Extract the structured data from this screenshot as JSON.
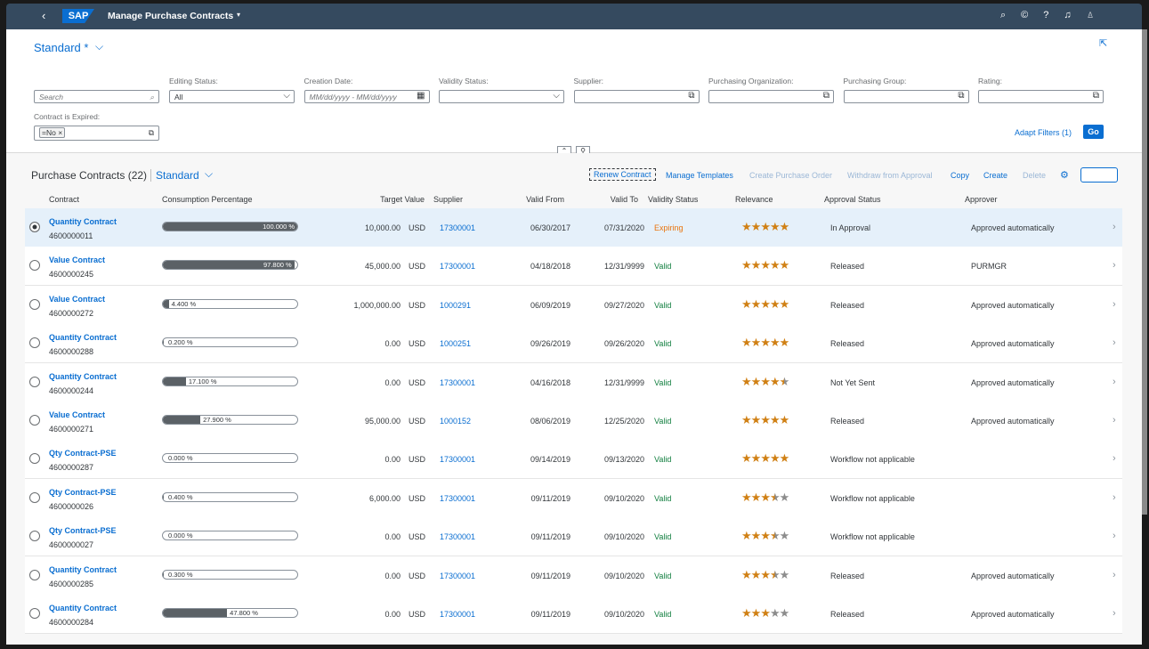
{
  "shell": {
    "logo": "SAP",
    "title": "Manage Purchase Contracts"
  },
  "variant": "Standard *",
  "filters": {
    "search": "Search",
    "fields": [
      {
        "label": "Editing Status:",
        "value": "All"
      },
      {
        "label": "Creation Date:",
        "placeholder": "MM/dd/yyyy - MM/dd/yyyy"
      },
      {
        "label": "Validity Status:"
      },
      {
        "label": "Supplier:"
      },
      {
        "label": "Purchasing Organization:"
      },
      {
        "label": "Purchasing Group:"
      },
      {
        "label": "Rating:"
      }
    ],
    "expired": {
      "label": "Contract is Expired:",
      "token": "=No"
    },
    "adapt": "Adapt Filters (1)",
    "go": "Go"
  },
  "table": {
    "title": "Purchase Contracts (22)",
    "variant": "Standard",
    "actions": [
      "Renew Contract",
      "Manage Templates",
      "Create Purchase Order",
      "Withdraw from Approval",
      "Copy",
      "Create",
      "Delete"
    ],
    "columns": [
      "Contract",
      "Consumption Percentage",
      "Target Value",
      "Supplier",
      "Valid From",
      "Valid To",
      "Validity Status",
      "Relevance",
      "Approval Status",
      "Approver"
    ],
    "rows": [
      {
        "type": "Quantity Contract",
        "id": "4600000011",
        "consumption": {
          "value": 100,
          "label": "100.000 %"
        },
        "target": "10,000.00",
        "currency": "USD",
        "supplier": "17300001",
        "from": "06/30/2017",
        "to": "07/31/2020",
        "status": "Expiring",
        "rating": 5,
        "approval": "In Approval",
        "approver": "Approved automatically"
      },
      {
        "type": "Value Contract",
        "id": "4600000245",
        "consumption": {
          "value": 97.8,
          "label": "97.800 %"
        },
        "target": "45,000.00",
        "currency": "USD",
        "supplier": "17300001",
        "from": "04/18/2018",
        "to": "12/31/9999",
        "status": "Valid",
        "rating": 5,
        "approval": "Released",
        "approver": "PURMGR"
      },
      {
        "type": "Value Contract",
        "id": "4600000272",
        "consumption": {
          "value": 4.4,
          "label": "4.400 %"
        },
        "target": "1,000,000.00",
        "currency": "USD",
        "supplier": "1000291",
        "from": "06/09/2019",
        "to": "09/27/2020",
        "status": "Valid",
        "rating": 5,
        "approval": "Released",
        "approver": "Approved automatically"
      },
      {
        "type": "Quantity Contract",
        "id": "4600000288",
        "consumption": {
          "value": 0.2,
          "label": "0.200 %"
        },
        "target": "0.00",
        "currency": "USD",
        "supplier": "1000251",
        "from": "09/26/2019",
        "to": "09/26/2020",
        "status": "Valid",
        "rating": 5,
        "approval": "Released",
        "approver": "Approved automatically"
      },
      {
        "type": "Quantity Contract",
        "id": "4600000244",
        "consumption": {
          "value": 17.1,
          "label": "17.100 %"
        },
        "target": "0.00",
        "currency": "USD",
        "supplier": "17300001",
        "from": "04/16/2018",
        "to": "12/31/9999",
        "status": "Valid",
        "rating": 4.5,
        "approval": "Not Yet Sent",
        "approver": "Approved automatically"
      },
      {
        "type": "Value Contract",
        "id": "4600000271",
        "consumption": {
          "value": 27.9,
          "label": "27.900 %"
        },
        "target": "95,000.00",
        "currency": "USD",
        "supplier": "1000152",
        "from": "08/06/2019",
        "to": "12/25/2020",
        "status": "Valid",
        "rating": 5,
        "approval": "Released",
        "approver": "Approved automatically"
      },
      {
        "type": "Qty Contract-PSE",
        "id": "4600000287",
        "consumption": {
          "value": 0,
          "label": "0.000 %"
        },
        "target": "0.00",
        "currency": "USD",
        "supplier": "17300001",
        "from": "09/14/2019",
        "to": "09/13/2020",
        "status": "Valid",
        "rating": 5,
        "approval": "Workflow not applicable",
        "approver": null
      },
      {
        "type": "Qty Contract-PSE",
        "id": "4600000026",
        "consumption": {
          "value": 0.4,
          "label": "0.400 %"
        },
        "target": "6,000.00",
        "currency": "USD",
        "supplier": "17300001",
        "from": "09/11/2019",
        "to": "09/10/2020",
        "status": "Valid",
        "rating": 3.5,
        "approval": "Workflow not applicable",
        "approver": null
      },
      {
        "type": "Qty Contract-PSE",
        "id": "4600000027",
        "consumption": {
          "value": 0,
          "label": "0.000 %"
        },
        "target": "0.00",
        "currency": "USD",
        "supplier": "17300001",
        "from": "09/11/2019",
        "to": "09/10/2020",
        "status": "Valid",
        "rating": 3.5,
        "approval": "Workflow not applicable",
        "approver": null
      },
      {
        "type": "Quantity Contract",
        "id": "4600000285",
        "consumption": {
          "value": 0.3,
          "label": "0.300 %"
        },
        "target": "0.00",
        "currency": "USD",
        "supplier": "17300001",
        "from": "09/11/2019",
        "to": "09/10/2020",
        "status": "Valid",
        "rating": 3.5,
        "approval": "Released",
        "approver": "Approved automatically"
      },
      {
        "type": "Quantity Contract",
        "id": "4600000284",
        "consumption": {
          "value": 47.8,
          "label": "47.800 %"
        },
        "target": "0.00",
        "currency": "USD",
        "supplier": "17300001",
        "from": "09/11/2019",
        "to": "09/10/2020",
        "status": "Valid",
        "rating": 3,
        "approval": "Released",
        "approver": "Approved automatically"
      }
    ]
  }
}
